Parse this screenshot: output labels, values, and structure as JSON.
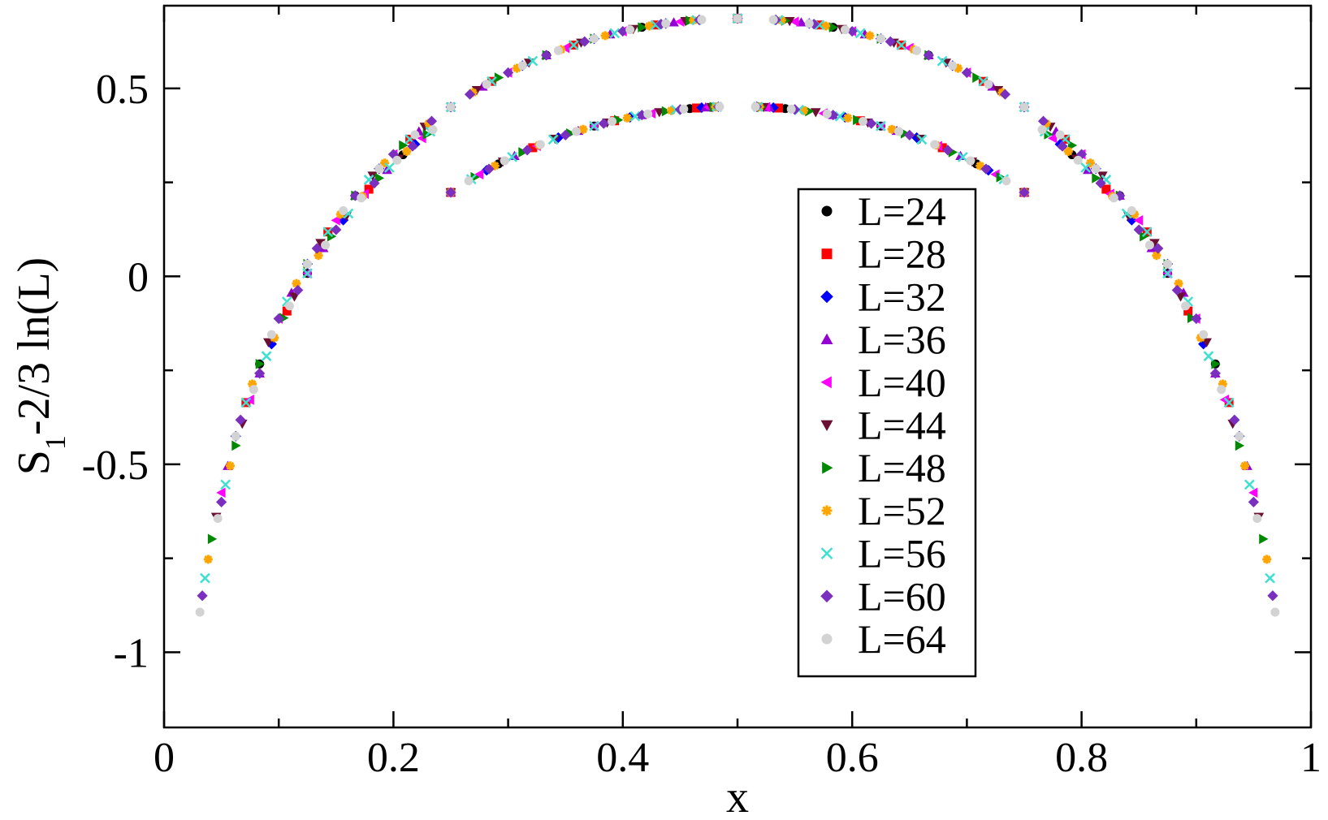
{
  "chart_data": {
    "type": "scatter",
    "xlabel": "x",
    "ylabel": "S1-2/3 ln(L)",
    "xlim": [
      0,
      1
    ],
    "ylim": [
      -1.2,
      0.72
    ],
    "x_ticks": [
      "0",
      "0.2",
      "0.4",
      "0.6",
      "0.8",
      "1"
    ],
    "y_ticks": [
      "-1",
      "-0.5",
      "0",
      "0.5"
    ],
    "legend_position": "right-center",
    "grid": false,
    "upper_curve_amplitude": 0.686,
    "lower_curve_amplitude": 0.452,
    "lower_curve_x_range": [
      0.25,
      0.75
    ],
    "series": [
      {
        "name": "L=24",
        "L": 24,
        "marker": "circle",
        "color": "#000000"
      },
      {
        "name": "L=28",
        "L": 28,
        "marker": "square",
        "color": "#ff0000"
      },
      {
        "name": "L=32",
        "L": 32,
        "marker": "diamond",
        "color": "#0000ff"
      },
      {
        "name": "L=36",
        "L": 36,
        "marker": "triangle-up",
        "color": "#9400d3"
      },
      {
        "name": "L=40",
        "L": 40,
        "marker": "triangle-left",
        "color": "#ff00ff"
      },
      {
        "name": "L=44",
        "L": 44,
        "marker": "triangle-down",
        "color": "#6b0f33"
      },
      {
        "name": "L=48",
        "L": 48,
        "marker": "triangle-right",
        "color": "#008800"
      },
      {
        "name": "L=52",
        "L": 52,
        "marker": "star",
        "color": "#ffa500"
      },
      {
        "name": "L=56",
        "L": 56,
        "marker": "x",
        "color": "#40e0d0"
      },
      {
        "name": "L=60",
        "L": 60,
        "marker": "diamond",
        "color": "#7b2fbe"
      },
      {
        "name": "L=64",
        "L": 64,
        "marker": "circle",
        "color": "#d3d3d3"
      }
    ]
  }
}
